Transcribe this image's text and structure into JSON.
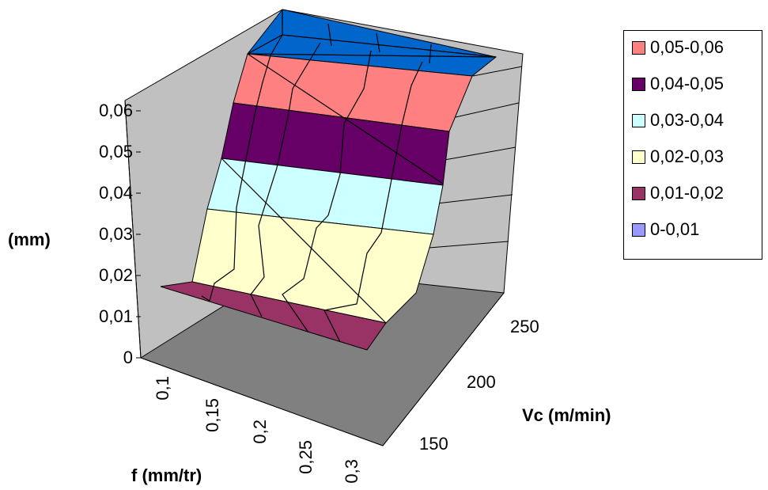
{
  "chart_data": {
    "type": "surface",
    "zlabel": "(mm)",
    "xlabel": "f (mm/tr)",
    "ylabel": "Vc (m/min)",
    "z_ticks": [
      "0",
      "0,01",
      "0,02",
      "0,03",
      "0,04",
      "0,05",
      "0,06"
    ],
    "zlim": [
      0,
      0.06
    ],
    "x_ticks": [
      "0,1",
      "0,15",
      "0,2",
      "0,25",
      "0,3"
    ],
    "y_ticks": [
      "150",
      "200",
      "250"
    ],
    "legend": {
      "position": "right",
      "items": [
        {
          "label": "0,05-0,06",
          "color": "#ff8080"
        },
        {
          "label": "0,04-0,05",
          "color": "#660066"
        },
        {
          "label": "0,03-0,04",
          "color": "#ccffff"
        },
        {
          "label": "0,02-0,03",
          "color": "#ffffcc"
        },
        {
          "label": "0,01-0,02",
          "color": "#993366"
        },
        {
          "label": "0-0,01",
          "color": "#9999ff"
        }
      ]
    },
    "band_colors": {
      "floor": "#808080",
      "walls": "#c0c0c0",
      "top": "#0066cc"
    }
  }
}
